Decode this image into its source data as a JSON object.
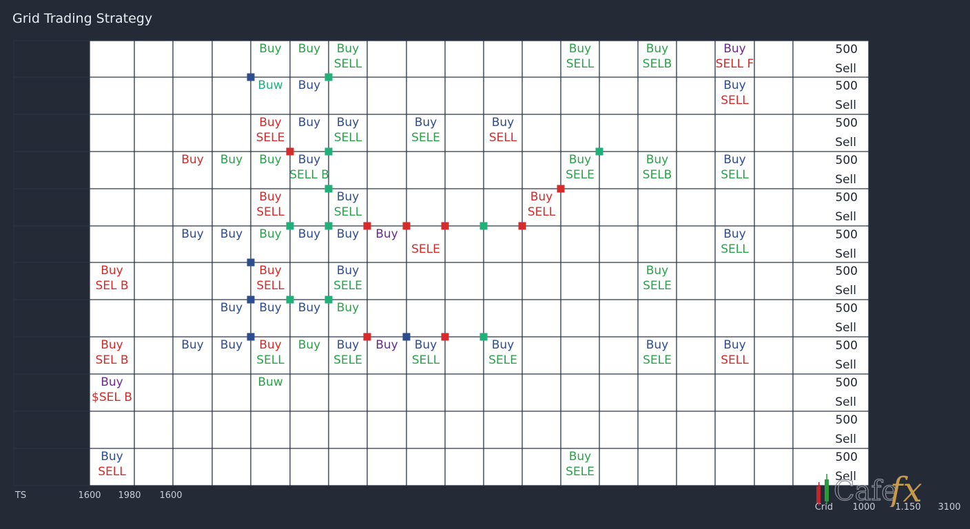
{
  "title": "Grid Trading Strategy",
  "colors": {
    "background": "#242a36",
    "plot": "#ffffff",
    "gridline": "#2b3447",
    "green": "#2aa24a",
    "blue": "#2e4d8f",
    "red": "#d52b2b",
    "purple": "#6a2a8f",
    "teal": "#22b07a"
  },
  "chart_data": {
    "type": "table",
    "title": "Grid Trading Strategy",
    "right_labels": [
      {
        "value": "500",
        "side": "Sell"
      },
      {
        "value": "500",
        "side": "Sell"
      },
      {
        "value": "500",
        "side": "Sell"
      },
      {
        "value": "500",
        "side": "Sell"
      },
      {
        "value": "500",
        "side": "Sell"
      },
      {
        "value": "500",
        "side": "Sell"
      },
      {
        "value": "500",
        "side": "Sell"
      },
      {
        "value": "500",
        "side": "Sell"
      },
      {
        "value": "500",
        "side": "Sell"
      },
      {
        "value": "500",
        "side": "Sell"
      },
      {
        "value": "500",
        "side": "Sell"
      },
      {
        "value": "500",
        "side": "Sell"
      }
    ],
    "x_ticks_left": [
      "TS",
      "1600",
      "1980",
      "1600"
    ],
    "x_ticks_right": [
      "Crid",
      "1000",
      "1.150",
      "3100"
    ],
    "cells": [
      {
        "col": 5,
        "row": 0,
        "top": "Buy",
        "topColor": "green"
      },
      {
        "col": 6,
        "row": 0,
        "top": "Buy",
        "topColor": "green"
      },
      {
        "col": 7,
        "row": 0,
        "top": "Buy",
        "topColor": "green",
        "bottom": "SELL",
        "bottomColor": "green"
      },
      {
        "col": 13,
        "row": 0,
        "top": "Buy",
        "topColor": "green",
        "bottom": "SELL",
        "bottomColor": "green"
      },
      {
        "col": 15,
        "row": 0,
        "top": "Buy",
        "topColor": "green",
        "bottom": "SELB",
        "bottomColor": "green"
      },
      {
        "col": 17,
        "row": 0,
        "top": "Buy",
        "topColor": "purple",
        "bottom": "SELL F",
        "bottomColor": "red"
      },
      {
        "col": 5,
        "row": 1,
        "top": "Buw",
        "topColor": "teal"
      },
      {
        "col": 6,
        "row": 1,
        "top": "Buy",
        "topColor": "blue"
      },
      {
        "col": 17,
        "row": 1,
        "top": "Buy",
        "topColor": "blue",
        "bottom": "SELL",
        "bottomColor": "red"
      },
      {
        "col": 5,
        "row": 2,
        "top": "Buy",
        "topColor": "red",
        "bottom": "SELE",
        "bottomColor": "red"
      },
      {
        "col": 6,
        "row": 2,
        "top": "Buy",
        "topColor": "blue"
      },
      {
        "col": 7,
        "row": 2,
        "top": "Buy",
        "topColor": "blue",
        "bottom": "SELL",
        "bottomColor": "green"
      },
      {
        "col": 9,
        "row": 2,
        "top": "Buy",
        "topColor": "blue",
        "bottom": "SELE",
        "bottomColor": "green"
      },
      {
        "col": 11,
        "row": 2,
        "top": "Buy",
        "topColor": "blue",
        "bottom": "SELL",
        "bottomColor": "red"
      },
      {
        "col": 3,
        "row": 3,
        "top": "Buy",
        "topColor": "red"
      },
      {
        "col": 4,
        "row": 3,
        "top": "Buy",
        "topColor": "green"
      },
      {
        "col": 5,
        "row": 3,
        "top": "Buy",
        "topColor": "green"
      },
      {
        "col": 6,
        "row": 3,
        "top": "Buy",
        "topColor": "blue",
        "bottom": "SELL B",
        "bottomColor": "green"
      },
      {
        "col": 13,
        "row": 3,
        "top": "Buy",
        "topColor": "green",
        "bottom": "SELE",
        "bottomColor": "green"
      },
      {
        "col": 15,
        "row": 3,
        "top": "Buy",
        "topColor": "green",
        "bottom": "SELB",
        "bottomColor": "green"
      },
      {
        "col": 17,
        "row": 3,
        "top": "Buy",
        "topColor": "blue",
        "bottom": "SELL",
        "bottomColor": "green"
      },
      {
        "col": 5,
        "row": 4,
        "top": "Buy",
        "topColor": "red",
        "bottom": "SELL",
        "bottomColor": "red"
      },
      {
        "col": 7,
        "row": 4,
        "top": "Buy",
        "topColor": "blue",
        "bottom": "SELL",
        "bottomColor": "green"
      },
      {
        "col": 12,
        "row": 4,
        "top": "Buy",
        "topColor": "red",
        "bottom": "SELL",
        "bottomColor": "red"
      },
      {
        "col": 3,
        "row": 5,
        "top": "Buy",
        "topColor": "blue"
      },
      {
        "col": 4,
        "row": 5,
        "top": "Buy",
        "topColor": "blue"
      },
      {
        "col": 5,
        "row": 5,
        "top": "Buy",
        "topColor": "green"
      },
      {
        "col": 6,
        "row": 5,
        "top": "Buy",
        "topColor": "blue"
      },
      {
        "col": 7,
        "row": 5,
        "top": "Buy",
        "topColor": "blue"
      },
      {
        "col": 8,
        "row": 5,
        "top": "Buy",
        "topColor": "purple"
      },
      {
        "col": 9,
        "row": 5,
        "bottom": "SELE",
        "bottomColor": "red"
      },
      {
        "col": 17,
        "row": 5,
        "top": "Buy",
        "topColor": "blue",
        "bottom": "SELL",
        "bottomColor": "green"
      },
      {
        "col": 1,
        "row": 6,
        "top": "Buy",
        "topColor": "red",
        "bottom": "SEL B",
        "bottomColor": "red"
      },
      {
        "col": 5,
        "row": 6,
        "top": "Buy",
        "topColor": "red",
        "bottom": "SELL",
        "bottomColor": "red"
      },
      {
        "col": 7,
        "row": 6,
        "top": "Buy",
        "topColor": "blue",
        "bottom": "SELE",
        "bottomColor": "green"
      },
      {
        "col": 15,
        "row": 6,
        "top": "Buy",
        "topColor": "green",
        "bottom": "SELE",
        "bottomColor": "green"
      },
      {
        "col": 4,
        "row": 7,
        "top": "Buy",
        "topColor": "blue"
      },
      {
        "col": 5,
        "row": 7,
        "top": "Buy",
        "topColor": "blue"
      },
      {
        "col": 6,
        "row": 7,
        "top": "Buy",
        "topColor": "blue"
      },
      {
        "col": 7,
        "row": 7,
        "top": "Buy",
        "topColor": "green"
      },
      {
        "col": 1,
        "row": 8,
        "top": "Buy",
        "topColor": "red",
        "bottom": "SEL B",
        "bottomColor": "red"
      },
      {
        "col": 3,
        "row": 8,
        "top": "Buy",
        "topColor": "blue"
      },
      {
        "col": 4,
        "row": 8,
        "top": "Buy",
        "topColor": "blue"
      },
      {
        "col": 5,
        "row": 8,
        "top": "Buy",
        "topColor": "red",
        "bottom": "SELL",
        "bottomColor": "green"
      },
      {
        "col": 6,
        "row": 8,
        "top": "Buy",
        "topColor": "green"
      },
      {
        "col": 7,
        "row": 8,
        "top": "Buy",
        "topColor": "blue",
        "bottom": "SELE",
        "bottomColor": "green"
      },
      {
        "col": 8,
        "row": 8,
        "top": "Buy",
        "topColor": "purple"
      },
      {
        "col": 9,
        "row": 8,
        "top": "Buy",
        "topColor": "blue",
        "bottom": "SELL",
        "bottomColor": "green"
      },
      {
        "col": 11,
        "row": 8,
        "top": "Buy",
        "topColor": "blue",
        "bottom": "SELE",
        "bottomColor": "green"
      },
      {
        "col": 15,
        "row": 8,
        "top": "Buy",
        "topColor": "blue",
        "bottom": "SELE",
        "bottomColor": "green"
      },
      {
        "col": 17,
        "row": 8,
        "top": "Buy",
        "topColor": "blue",
        "bottom": "SELL",
        "bottomColor": "red"
      },
      {
        "col": 1,
        "row": 9,
        "top": "Buy",
        "topColor": "purple",
        "bottom": "$SEL B",
        "bottomColor": "red"
      },
      {
        "col": 5,
        "row": 9,
        "top": "Buw",
        "topColor": "green"
      },
      {
        "col": 1,
        "row": 11,
        "top": "Buy",
        "topColor": "blue",
        "bottom": "SELL",
        "bottomColor": "red"
      },
      {
        "col": 13,
        "row": 11,
        "top": "Buy",
        "topColor": "green",
        "bottom": "SELE",
        "bottomColor": "green"
      }
    ],
    "markers": [
      {
        "col": 5,
        "row": 1,
        "color": "blue"
      },
      {
        "col": 7,
        "row": 1,
        "color": "teal"
      },
      {
        "col": 6,
        "row": 3,
        "color": "red"
      },
      {
        "col": 7,
        "row": 3,
        "color": "teal"
      },
      {
        "col": 14,
        "row": 3,
        "color": "teal"
      },
      {
        "col": 7,
        "row": 4,
        "color": "teal"
      },
      {
        "col": 13,
        "row": 4,
        "color": "red"
      },
      {
        "col": 6,
        "row": 5,
        "color": "teal"
      },
      {
        "col": 7,
        "row": 5,
        "color": "teal"
      },
      {
        "col": 8,
        "row": 5,
        "color": "red"
      },
      {
        "col": 9,
        "row": 5,
        "color": "red"
      },
      {
        "col": 10,
        "row": 5,
        "color": "red"
      },
      {
        "col": 11,
        "row": 5,
        "color": "teal"
      },
      {
        "col": 12,
        "row": 5,
        "color": "red"
      },
      {
        "col": 5,
        "row": 6,
        "color": "blue"
      },
      {
        "col": 5,
        "row": 7,
        "color": "blue"
      },
      {
        "col": 6,
        "row": 7,
        "color": "teal"
      },
      {
        "col": 7,
        "row": 7,
        "color": "teal"
      },
      {
        "col": 5,
        "row": 8,
        "color": "blue"
      },
      {
        "col": 8,
        "row": 8,
        "color": "red"
      },
      {
        "col": 9,
        "row": 8,
        "color": "blue"
      },
      {
        "col": 10,
        "row": 8,
        "color": "red"
      },
      {
        "col": 11,
        "row": 8,
        "color": "teal"
      }
    ]
  }
}
